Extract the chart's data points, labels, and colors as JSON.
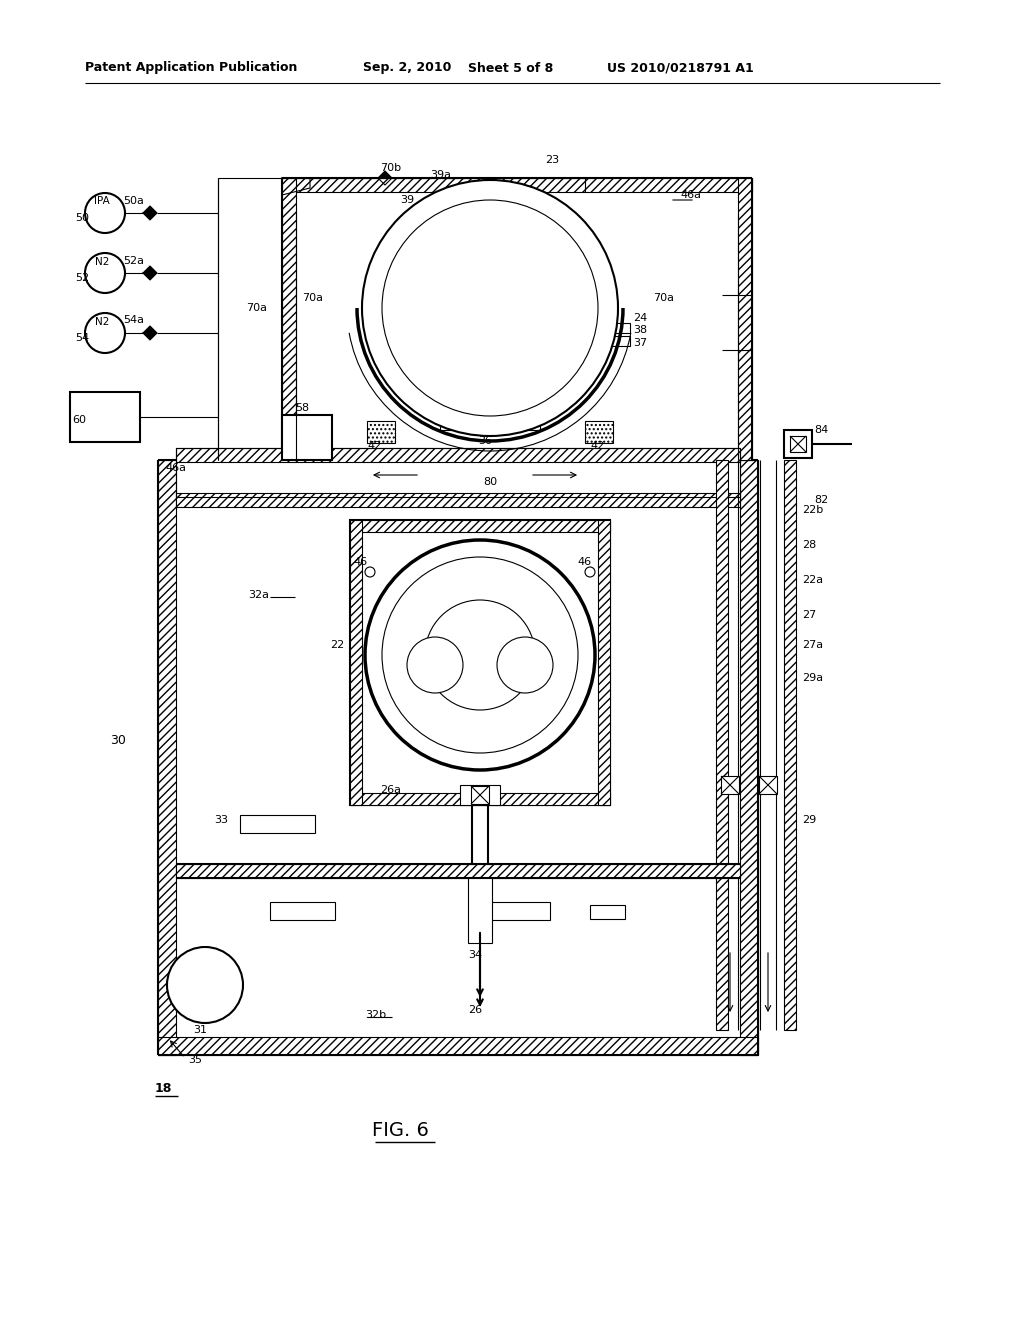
{
  "bg_color": "#ffffff",
  "header_text": "Patent Application Publication",
  "header_date": "Sep. 2, 2010",
  "header_sheet": "Sheet 5 of 8",
  "header_patent": "US 2010/0218791 A1",
  "figure_label": "FIG. 6"
}
